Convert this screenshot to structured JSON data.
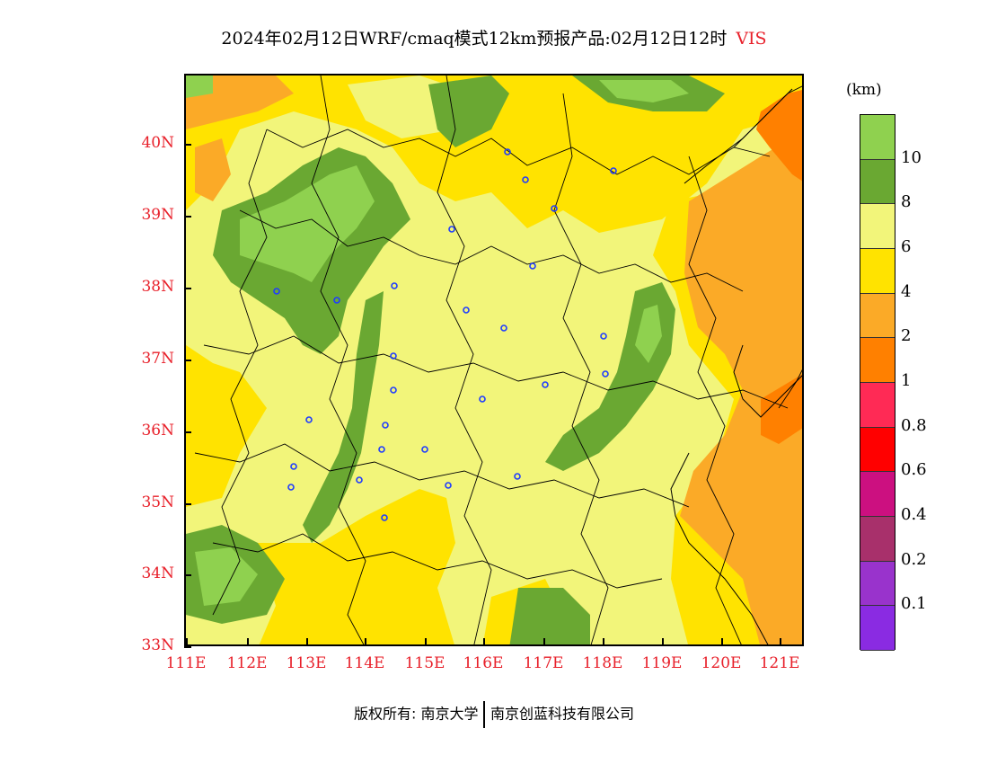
{
  "title": {
    "main": "2024年02月12日WRF/cmaq模式12km预报产品:02月12日12时",
    "variable": "VIS"
  },
  "axes": {
    "lat_labels": [
      "40N",
      "39N",
      "38N",
      "37N",
      "36N",
      "35N",
      "34N",
      "33N"
    ],
    "lon_labels": [
      "111E",
      "112E",
      "113E",
      "114E",
      "115E",
      "116E",
      "117E",
      "118E",
      "119E",
      "120E",
      "121E"
    ],
    "label_color": "#e8202a"
  },
  "colorbar": {
    "unit": "(km)",
    "levels": [
      "10",
      "8",
      "6",
      "4",
      "2",
      "1",
      "0.8",
      "0.6",
      "0.4",
      "0.2",
      "0.1"
    ],
    "colors_top_to_bottom": [
      "#8fd14f",
      "#6aa832",
      "#f2f57a",
      "#ffe300",
      "#fbaa27",
      "#ff8000",
      "#ff2a55",
      "#ff0000",
      "#cc1080",
      "#a8306b",
      "#9933cc",
      "#8a2be2"
    ]
  },
  "stations": 27,
  "footer": {
    "copyright": "版权所有: 南京大学",
    "company": "南京创蓝科技有限公司"
  }
}
